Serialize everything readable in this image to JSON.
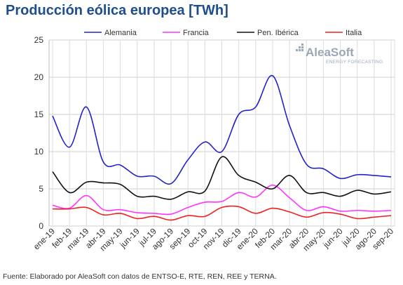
{
  "title": "Producción eólica europea [TWh]",
  "source": "Fuente: Elaborado por AleaSoft con datos de ENTSO-E, RTE, REN, REE y TERNA.",
  "logo": {
    "name": "AleaSoft",
    "tagline": "ENERGY FORECASTING"
  },
  "chart_data": {
    "type": "line",
    "categories": [
      "ene-19",
      "feb-19",
      "mar-19",
      "abr-19",
      "may-19",
      "jun-19",
      "jul-19",
      "ago-19",
      "sep-19",
      "oct-19",
      "nov-19",
      "dic-19",
      "ene-20",
      "feb-20",
      "mar-20",
      "abr-20",
      "may-20",
      "jun-20",
      "jul-20",
      "ago-20",
      "sep-20"
    ],
    "ylim": [
      0,
      25
    ],
    "yticks": [
      0,
      5,
      10,
      15,
      20,
      25
    ],
    "grid": true,
    "legend_position": "top",
    "series": [
      {
        "name": "Alemania",
        "color": "#2323c8",
        "values": [
          14.8,
          10.6,
          16.0,
          8.6,
          8.2,
          6.7,
          6.7,
          5.7,
          8.9,
          11.3,
          10.0,
          15.0,
          16.0,
          20.2,
          13.5,
          8.3,
          7.7,
          6.4,
          6.9,
          6.8,
          6.6
        ]
      },
      {
        "name": "Francia",
        "color": "#ff33ff",
        "values": [
          2.8,
          2.4,
          4.1,
          2.2,
          2.2,
          1.8,
          1.7,
          1.6,
          2.5,
          3.2,
          3.3,
          4.5,
          3.9,
          5.5,
          3.8,
          2.1,
          2.6,
          2.0,
          2.1,
          2.0,
          2.1
        ]
      },
      {
        "name": "Pen. Ibérica",
        "color": "#111111",
        "values": [
          7.3,
          4.5,
          5.9,
          5.8,
          5.6,
          4.0,
          4.0,
          3.6,
          4.6,
          4.7,
          9.3,
          6.8,
          5.9,
          5.0,
          6.8,
          4.5,
          4.5,
          4.0,
          4.8,
          4.3,
          4.6
        ]
      },
      {
        "name": "Italia",
        "color": "#ee2222",
        "values": [
          2.3,
          2.3,
          2.5,
          1.5,
          1.7,
          1.0,
          1.3,
          0.8,
          1.4,
          1.3,
          2.5,
          2.6,
          1.7,
          2.4,
          1.9,
          1.2,
          1.8,
          1.6,
          1.0,
          1.2,
          1.4
        ]
      }
    ]
  }
}
